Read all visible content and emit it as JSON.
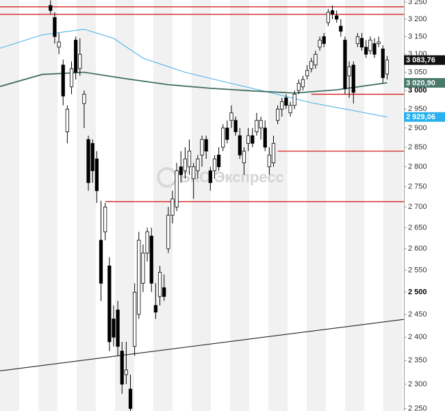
{
  "chart_data": {
    "type": "candlestick",
    "log_scale": true,
    "watermark": "БКС Экспресс",
    "xlim": [
      -12,
      84
    ],
    "ylim": [
      2245,
      3256
    ],
    "yticks": [
      {
        "value": 3250,
        "label": "3 250"
      },
      {
        "value": 3200,
        "label": "3 200"
      },
      {
        "value": 3150,
        "label": "3 150"
      },
      {
        "value": 3100,
        "label": "3 100"
      },
      {
        "value": 3050,
        "label": "3 050"
      },
      {
        "value": 3000,
        "label": "3 000"
      },
      {
        "value": 2950,
        "label": "2 950"
      },
      {
        "value": 2900,
        "label": "2 900"
      },
      {
        "value": 2850,
        "label": "2 850"
      },
      {
        "value": 2800,
        "label": "2 800"
      },
      {
        "value": 2750,
        "label": "2 750"
      },
      {
        "value": 2700,
        "label": "2 700"
      },
      {
        "value": 2650,
        "label": "2 650"
      },
      {
        "value": 2600,
        "label": "2 600"
      },
      {
        "value": 2550,
        "label": "2 550"
      },
      {
        "value": 2500,
        "label": "2 500"
      },
      {
        "value": 2450,
        "label": "2 450"
      },
      {
        "value": 2400,
        "label": "2 400"
      },
      {
        "value": 2350,
        "label": "2 350"
      },
      {
        "value": 2300,
        "label": "2 300"
      },
      {
        "value": 2250,
        "label": "2 250"
      }
    ],
    "up_color": "#ffffff",
    "down_color": "#000000",
    "open": [
      3240,
      3205,
      3120,
      3070,
      2890,
      3010,
      3140,
      3060,
      2965,
      2870,
      2860,
      2820,
      2620,
      2640,
      2560,
      2440,
      2460,
      2370,
      2320,
      2290,
      2380,
      2450,
      2520,
      2590,
      2630,
      2470,
      2490,
      2510,
      2600,
      2680,
      2700,
      2800,
      2790,
      2800,
      2770,
      2790,
      2830,
      2870,
      2790,
      2790,
      2830,
      2850,
      2900,
      2920,
      2920,
      2880,
      2810,
      2860,
      2880,
      2890,
      2900,
      2900,
      2800,
      2810,
      2920,
      2950,
      2980,
      2940,
      2960,
      3000,
      3010,
      3040,
      3060,
      3070,
      3120,
      3150,
      3190,
      3225,
      3210,
      3180,
      3140,
      3040,
      3070,
      3130,
      3145,
      3120,
      3110,
      3130,
      3130,
      3115,
      3045
    ],
    "high": [
      3255,
      3220,
      3160,
      3085,
      2960,
      3080,
      3150,
      3145,
      3000,
      2880,
      2870,
      2840,
      2715,
      2710,
      2580,
      2470,
      2480,
      2390,
      2390,
      2320,
      2520,
      2640,
      2610,
      2650,
      2650,
      2520,
      2560,
      2540,
      2700,
      2740,
      2810,
      2840,
      2850,
      2870,
      2810,
      2830,
      2880,
      2880,
      2800,
      2830,
      2850,
      2910,
      2920,
      2960,
      2930,
      2900,
      2850,
      2900,
      2900,
      2940,
      2930,
      2920,
      2850,
      2880,
      2960,
      2980,
      2990,
      2970,
      3000,
      3030,
      3040,
      3070,
      3090,
      3110,
      3150,
      3160,
      3230,
      3240,
      3225,
      3200,
      3150,
      3080,
      3080,
      3160,
      3160,
      3140,
      3150,
      3145,
      3150,
      3125,
      3095
    ],
    "low": [
      3215,
      3130,
      3100,
      2960,
      2860,
      2990,
      3030,
      3040,
      2900,
      2740,
      2760,
      2710,
      2480,
      2620,
      2370,
      2380,
      2360,
      2280,
      2300,
      2245,
      2360,
      2440,
      2500,
      2570,
      2500,
      2440,
      2470,
      2480,
      2590,
      2660,
      2690,
      2760,
      2770,
      2780,
      2720,
      2770,
      2800,
      2820,
      2740,
      2770,
      2790,
      2840,
      2860,
      2900,
      2880,
      2820,
      2780,
      2840,
      2850,
      2880,
      2870,
      2840,
      2780,
      2800,
      2910,
      2930,
      2950,
      2930,
      2950,
      2990,
      3000,
      3030,
      3050,
      3060,
      3110,
      3120,
      3180,
      3200,
      3190,
      3150,
      2990,
      2980,
      2965,
      3120,
      3110,
      3090,
      3100,
      3090,
      3120,
      3020,
      3030
    ],
    "close": [
      3225,
      3150,
      3135,
      2985,
      2950,
      3060,
      3050,
      3100,
      2990,
      2760,
      2790,
      2740,
      2520,
      2700,
      2390,
      2400,
      2380,
      2300,
      2330,
      2250,
      2500,
      2620,
      2590,
      2640,
      2520,
      2455,
      2545,
      2490,
      2680,
      2720,
      2790,
      2780,
      2820,
      2840,
      2800,
      2820,
      2870,
      2840,
      2760,
      2820,
      2800,
      2900,
      2870,
      2940,
      2890,
      2830,
      2840,
      2880,
      2860,
      2920,
      2920,
      2850,
      2830,
      2860,
      2950,
      2970,
      2960,
      2960,
      2990,
      3020,
      3030,
      3055,
      3080,
      3100,
      3140,
      3130,
      3220,
      3215,
      3200,
      3165,
      3005,
      3065,
      2995,
      3150,
      3120,
      3100,
      3140,
      3100,
      3135,
      3035,
      3083.76
    ],
    "lines": [
      {
        "color": "#4db3ea",
        "x": [
          -12,
          -2,
          8,
          15,
          22,
          32,
          42,
          52,
          62,
          72,
          80
        ],
        "values": [
          3117,
          3155,
          3171,
          3145,
          3089,
          3050,
          3022,
          2995,
          2967,
          2946,
          2929
        ]
      },
      {
        "color": "#3f6e62",
        "x": [
          -12,
          -2,
          8,
          18,
          28,
          38,
          48,
          58,
          68,
          80
        ],
        "values": [
          3011,
          3044,
          3050,
          3032,
          3016,
          3006,
          2999,
          2993,
          3002,
          3021
        ]
      },
      {
        "color": "#222222",
        "x": [
          -12,
          84
        ],
        "values": [
          2328,
          2439
        ]
      }
    ],
    "levels": [
      {
        "value": 3236,
        "from": -12
      },
      {
        "value": 3214,
        "from": -12
      },
      {
        "value": 2990,
        "from": 62
      },
      {
        "value": 2840,
        "from": 54
      },
      {
        "value": 2713,
        "from": 13
      }
    ],
    "level_color": "#d42020",
    "price_tags": [
      {
        "value": 3083.76,
        "label": "3 083,76",
        "color": "#111111"
      },
      {
        "value": 3020.9,
        "label": "3 020,90",
        "color": "#4a7a6c"
      },
      {
        "value": 2929.06,
        "label": "2 929,06",
        "color": "#29b0ee"
      }
    ]
  }
}
